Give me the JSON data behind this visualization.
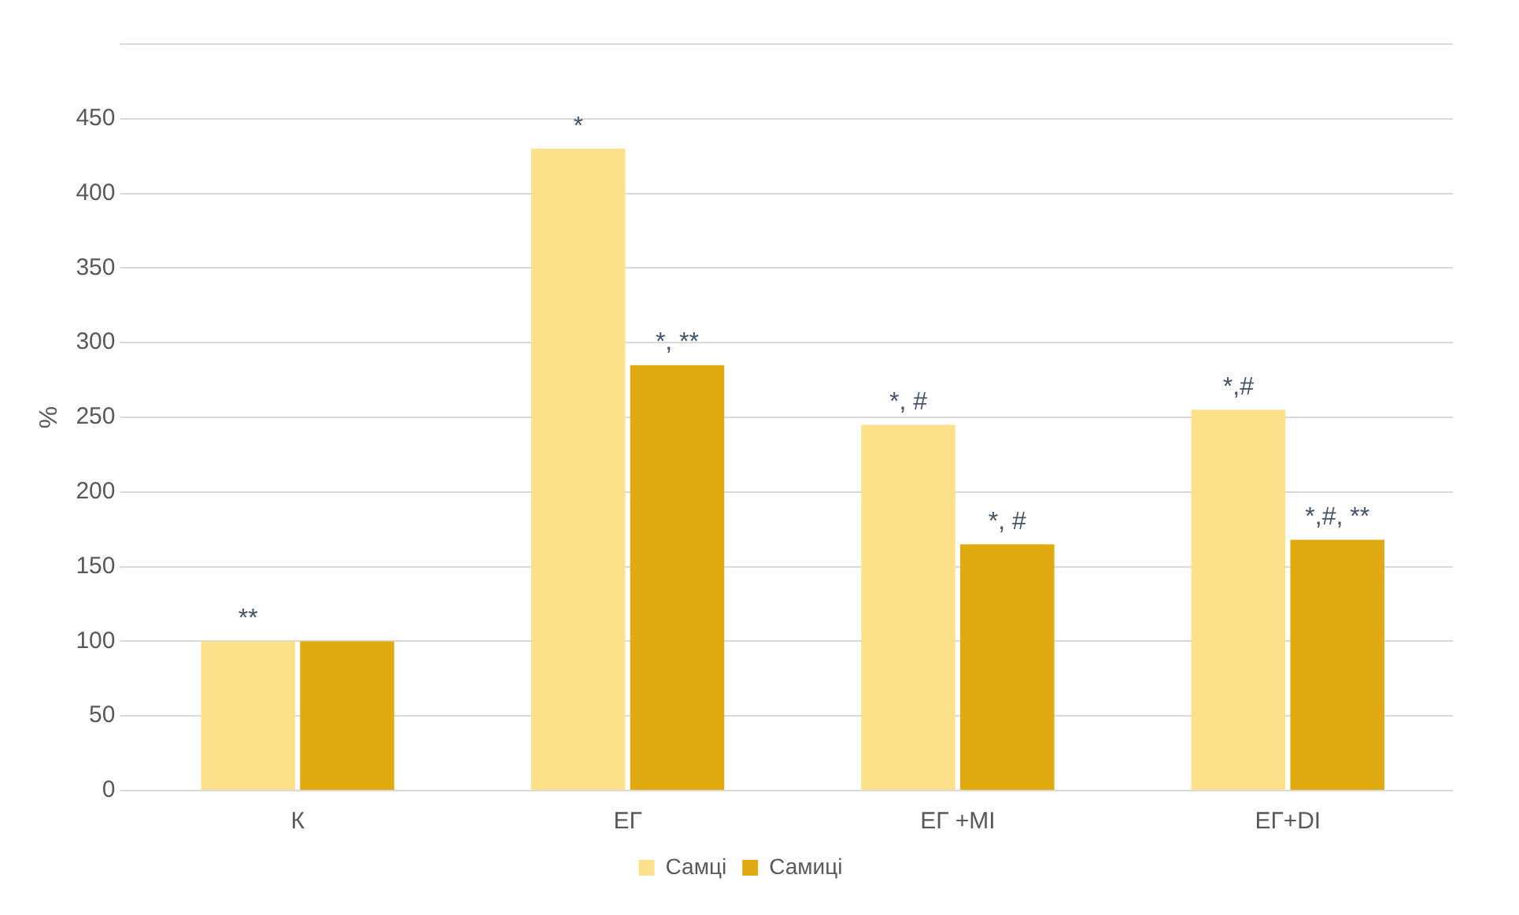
{
  "chart_data": {
    "type": "bar",
    "ylabel": "%",
    "categories": [
      "К",
      "ЕГ",
      "ЕГ +MI",
      "ЕГ+DI"
    ],
    "series": [
      {
        "name": "Самці",
        "color": "#fde18a",
        "values": [
          100,
          430,
          245,
          255
        ]
      },
      {
        "name": "Самиці",
        "color": "#e0aa10",
        "values": [
          100,
          285,
          165,
          168
        ]
      }
    ],
    "ylim": [
      0,
      500
    ],
    "yticks": [
      0,
      50,
      100,
      150,
      200,
      250,
      300,
      350,
      400,
      450,
      {
        "value": 500,
        "label": null
      }
    ],
    "grid": "y",
    "legend": "bottom",
    "annotations": [
      {
        "text": "**",
        "x": "К",
        "y": 100
      },
      {
        "text": "*",
        "x": "ЕГ",
        "y": 430
      },
      {
        "text": "*, **",
        "x": "ЕГ",
        "y": 285
      },
      {
        "text": "*, #",
        "x": "ЕГ +MI",
        "y": 245
      },
      {
        "text": "*, #",
        "x": "ЕГ +MI",
        "y": 165
      },
      {
        "text": "*,#",
        "x": "ЕГ+DI",
        "y": 255
      },
      {
        "text": "*,#, **",
        "x": "ЕГ+DI",
        "y": 168
      }
    ]
  }
}
